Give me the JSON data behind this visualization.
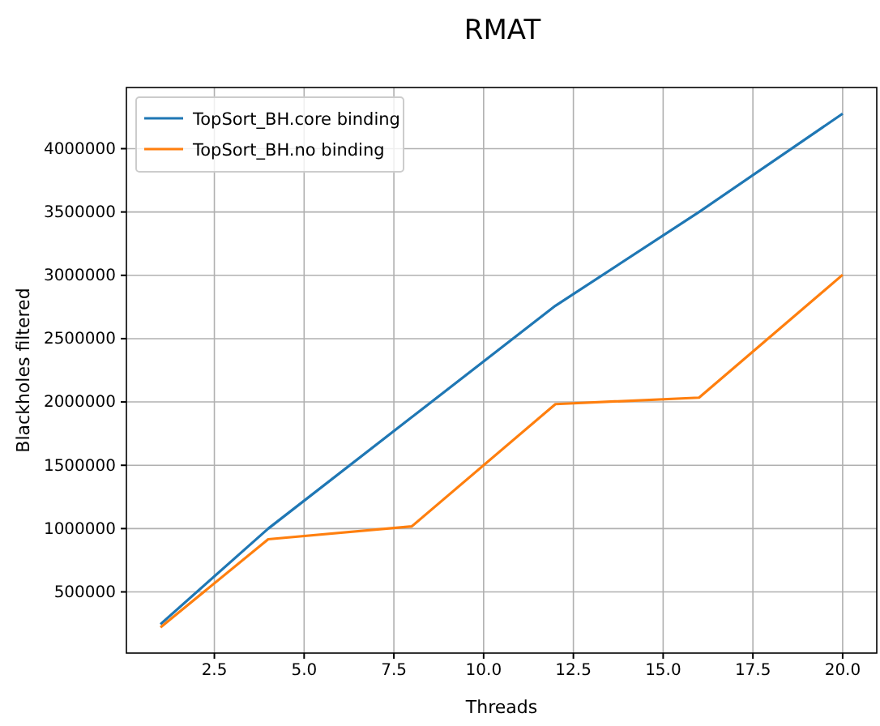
{
  "chart_data": {
    "type": "line",
    "title": "RMAT",
    "xlabel": "Threads",
    "ylabel": "Blackholes filtered",
    "x": [
      1,
      4,
      8,
      12,
      16,
      20
    ],
    "series": [
      {
        "name": "TopSort_BH.core binding",
        "color": "#1f77b4",
        "values": [
          245000,
          1000000,
          1880000,
          2760000,
          3500000,
          4277000
        ]
      },
      {
        "name": "TopSort_BH.no binding",
        "color": "#ff7f0e",
        "values": [
          220000,
          916000,
          1018000,
          1983000,
          2034000,
          3004000
        ]
      }
    ],
    "xlim": [
      0.05,
      20.95
    ],
    "ylim": [
      17000,
      4483000
    ],
    "xticks": [
      {
        "value": 2.5,
        "label": "2.5"
      },
      {
        "value": 5,
        "label": "5.0"
      },
      {
        "value": 7.5,
        "label": "7.5"
      },
      {
        "value": 10,
        "label": "10.0"
      },
      {
        "value": 12.5,
        "label": "12.5"
      },
      {
        "value": 15,
        "label": "15.0"
      },
      {
        "value": 17.5,
        "label": "17.5"
      },
      {
        "value": 20,
        "label": "20.0"
      }
    ],
    "yticks": [
      500000,
      1000000,
      1500000,
      2000000,
      2500000,
      3000000,
      3500000,
      4000000
    ],
    "grid": true,
    "legend": "top left",
    "line_style": "solid"
  }
}
